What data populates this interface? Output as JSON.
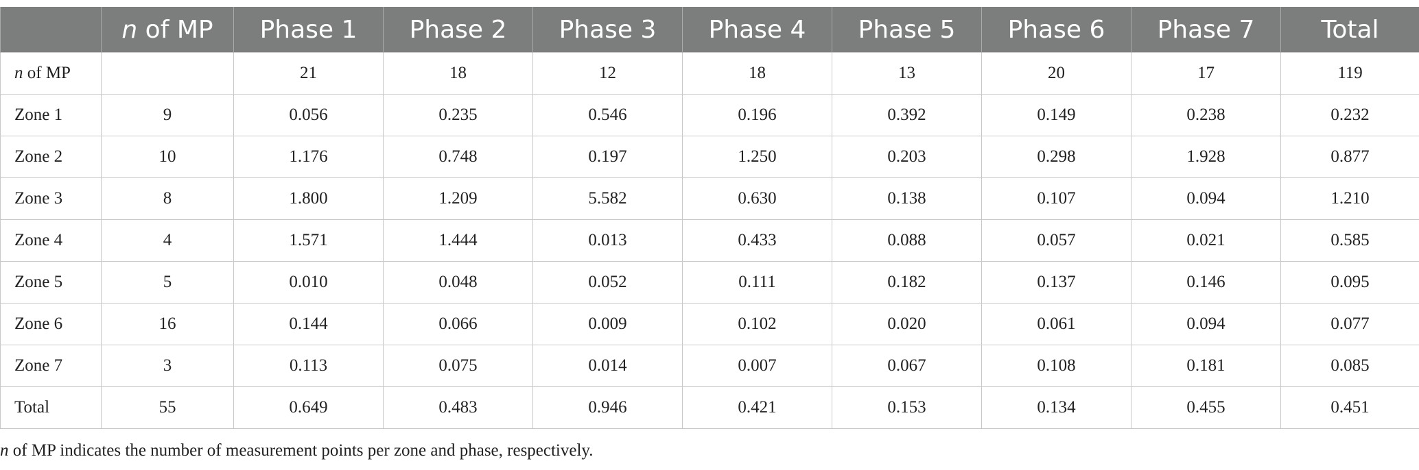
{
  "table": {
    "header": {
      "corner": "",
      "nmp_italic": "n",
      "nmp_rest": " of MP",
      "phases": [
        "Phase 1",
        "Phase 2",
        "Phase 3",
        "Phase 4",
        "Phase 5",
        "Phase 6",
        "Phase 7"
      ],
      "total": "Total"
    },
    "rows": [
      {
        "label_italic": "n",
        "label_rest": " of MP",
        "nmp": "",
        "values": [
          "21",
          "18",
          "12",
          "18",
          "13",
          "20",
          "17"
        ],
        "total": "119"
      },
      {
        "label_italic": "",
        "label_rest": "Zone 1",
        "nmp": "9",
        "values": [
          "0.056",
          "0.235",
          "0.546",
          "0.196",
          "0.392",
          "0.149",
          "0.238"
        ],
        "total": "0.232"
      },
      {
        "label_italic": "",
        "label_rest": "Zone 2",
        "nmp": "10",
        "values": [
          "1.176",
          "0.748",
          "0.197",
          "1.250",
          "0.203",
          "0.298",
          "1.928"
        ],
        "total": "0.877"
      },
      {
        "label_italic": "",
        "label_rest": "Zone 3",
        "nmp": "8",
        "values": [
          "1.800",
          "1.209",
          "5.582",
          "0.630",
          "0.138",
          "0.107",
          "0.094"
        ],
        "total": "1.210"
      },
      {
        "label_italic": "",
        "label_rest": "Zone 4",
        "nmp": "4",
        "values": [
          "1.571",
          "1.444",
          "0.013",
          "0.433",
          "0.088",
          "0.057",
          "0.021"
        ],
        "total": "0.585"
      },
      {
        "label_italic": "",
        "label_rest": "Zone 5",
        "nmp": "5",
        "values": [
          "0.010",
          "0.048",
          "0.052",
          "0.111",
          "0.182",
          "0.137",
          "0.146"
        ],
        "total": "0.095"
      },
      {
        "label_italic": "",
        "label_rest": "Zone 6",
        "nmp": "16",
        "values": [
          "0.144",
          "0.066",
          "0.009",
          "0.102",
          "0.020",
          "0.061",
          "0.094"
        ],
        "total": "0.077"
      },
      {
        "label_italic": "",
        "label_rest": "Zone 7",
        "nmp": "3",
        "values": [
          "0.113",
          "0.075",
          "0.014",
          "0.007",
          "0.067",
          "0.108",
          "0.181"
        ],
        "total": "0.085"
      },
      {
        "label_italic": "",
        "label_rest": "Total",
        "nmp": "55",
        "values": [
          "0.649",
          "0.483",
          "0.946",
          "0.421",
          "0.153",
          "0.134",
          "0.455"
        ],
        "total": "0.451"
      }
    ]
  },
  "footnote": {
    "italic": "n",
    "rest": " of MP indicates the number of measurement points per zone and phase, respectively."
  }
}
